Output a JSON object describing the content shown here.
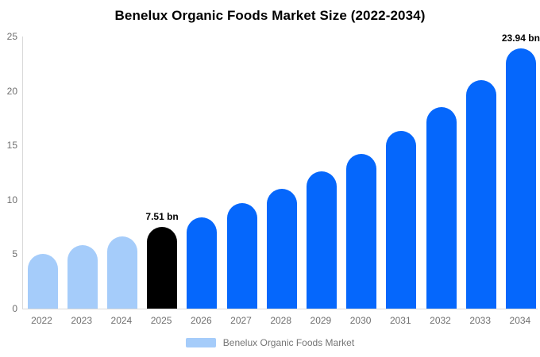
{
  "chart_data": {
    "type": "bar",
    "title": "Benelux Organic Foods Market Size (2022-2034)",
    "unit": "bn",
    "categories": [
      "2022",
      "2023",
      "2024",
      "2025",
      "2026",
      "2027",
      "2028",
      "2029",
      "2030",
      "2031",
      "2032",
      "2033",
      "2034"
    ],
    "values": [
      5.0,
      5.8,
      6.6,
      7.51,
      8.4,
      9.7,
      11.0,
      12.6,
      14.2,
      16.3,
      18.5,
      21.0,
      23.94
    ],
    "ylim": [
      0,
      25
    ],
    "yticks": [
      0,
      5,
      10,
      15,
      20,
      25
    ],
    "grid": false,
    "xlabel": "",
    "ylabel": "",
    "colors": {
      "historical": "#a5ccfa",
      "highlight": "#000000",
      "forecast": "#0567fc"
    },
    "bar_color_roles": [
      "historical",
      "historical",
      "historical",
      "highlight",
      "forecast",
      "forecast",
      "forecast",
      "forecast",
      "forecast",
      "forecast",
      "forecast",
      "forecast",
      "forecast"
    ],
    "annotations": [
      {
        "index": 3,
        "label": "7.51 bn"
      },
      {
        "index": 12,
        "label": "23.94 bn"
      }
    ],
    "legend": {
      "position": "bottom",
      "label": "Benelux Organic Foods Market",
      "swatch_color": "#a5ccfa"
    },
    "axis_line_color": "#d9d9d9",
    "tick_label_color": "#6f6f6f"
  }
}
